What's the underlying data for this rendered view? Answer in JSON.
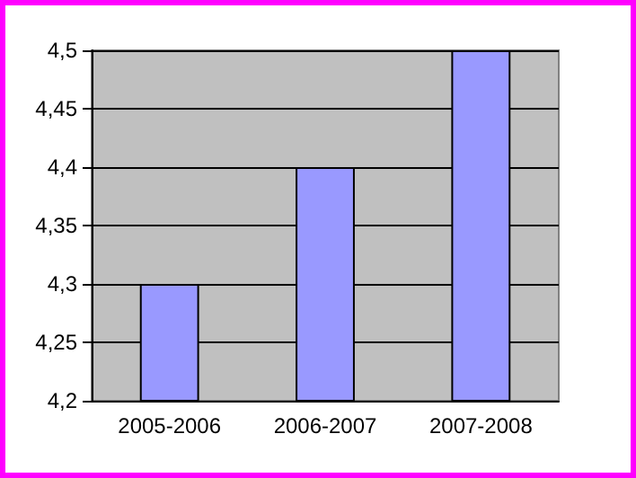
{
  "chart_data": {
    "type": "bar",
    "categories": [
      "2005-2006",
      "2006-2007",
      "2007-2008"
    ],
    "values": [
      4.3,
      4.4,
      4.5
    ],
    "color": "#9999ff",
    "ylim": [
      4.2,
      4.5
    ],
    "yticks": [
      {
        "value": 4.2,
        "label": "4,2"
      },
      {
        "value": 4.25,
        "label": "4,25"
      },
      {
        "value": 4.3,
        "label": "4,3"
      },
      {
        "value": 4.35,
        "label": "4,35"
      },
      {
        "value": 4.4,
        "label": "4,4"
      },
      {
        "value": 4.45,
        "label": "4,45"
      },
      {
        "value": 4.5,
        "label": "4,5"
      }
    ],
    "grid": "y"
  }
}
